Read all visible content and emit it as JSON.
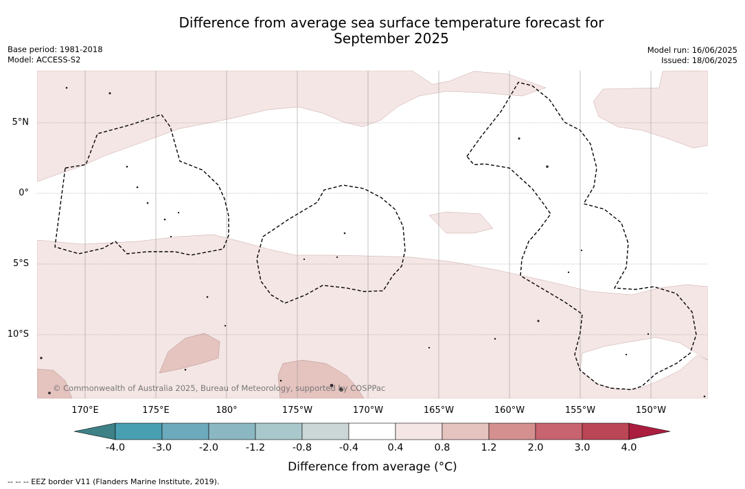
{
  "title_line1": "Difference from average sea surface temperature forecast for",
  "title_line2": "September 2025",
  "base_period": "Base period: 1981-2018",
  "model": "Model: ACCESS-S2",
  "model_run": "Model run: 16/06/2025",
  "issued": "Issued: 18/06/2025",
  "credit": "© Commonwealth of Australia 2025, Bureau of Meteorology, supported by COSPPac",
  "lat_labels": [
    "5°N",
    "0°",
    "5°S",
    "10°S"
  ],
  "lon_labels": [
    "170°E",
    "175°E",
    "180°",
    "175°W",
    "170°W",
    "165°W",
    "160°W",
    "155°W",
    "150°W"
  ],
  "colorbar": {
    "title": "Difference from average (°C)",
    "tick_labels": [
      "-4.0",
      "-3.0",
      "-2.0",
      "-1.2",
      "-0.8",
      "-0.4",
      "0.4",
      "0.8",
      "1.2",
      "2.0",
      "3.0",
      "4.0"
    ],
    "colors": [
      "#3e8187",
      "#489fb1",
      "#6daabb",
      "#8ab7c2",
      "#a9c8cb",
      "#cbd6d7",
      "#ffffff",
      "#f4e6e4",
      "#e5c3bf",
      "#d4908f",
      "#c76470",
      "#bb4656",
      "#ab1d3f"
    ]
  },
  "footnote": "-- -- -- EEZ border V11 (Flanders Marine Institute, 2019)."
}
